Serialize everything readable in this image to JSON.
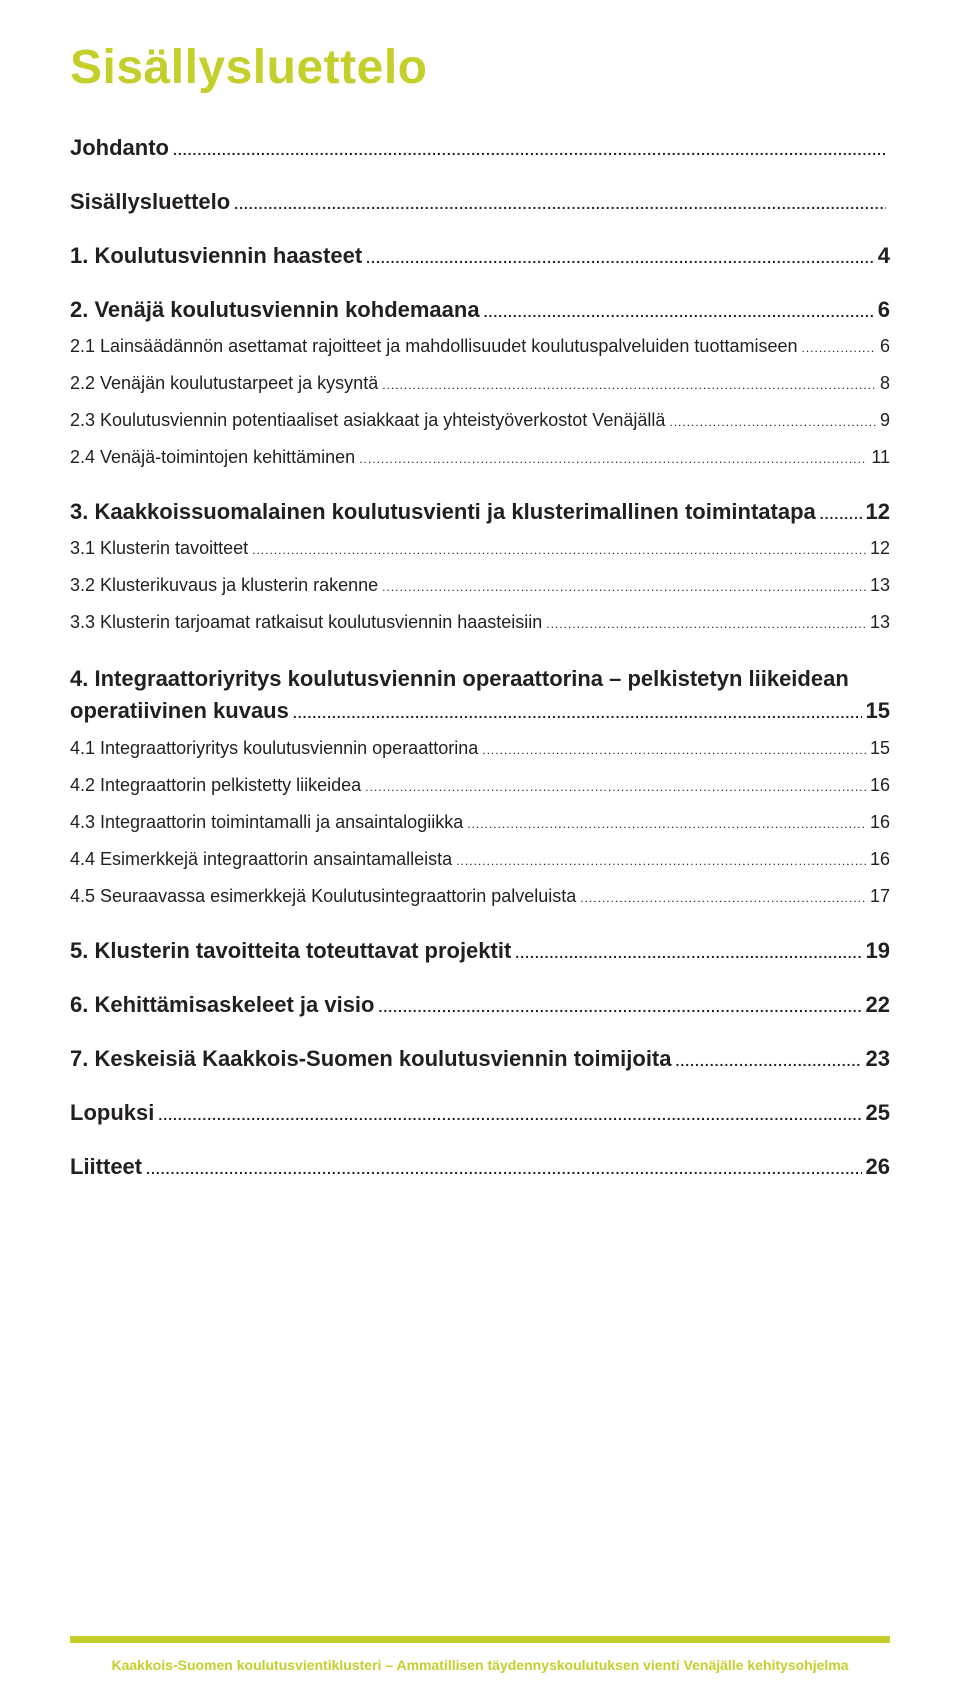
{
  "title": "Sisällysluettelo",
  "toc": [
    {
      "level": 0,
      "label": "Johdanto",
      "page": ""
    },
    {
      "level": 0,
      "label": "Sisällysluettelo",
      "page": ""
    },
    {
      "level": 0,
      "label": "1. Koulutusviennin haasteet",
      "page": "4"
    },
    {
      "level": 0,
      "label": "2. Venäjä koulutusviennin kohdemaana",
      "page": "6"
    },
    {
      "level": 1,
      "label": "2.1 Lainsäädännön asettamat rajoitteet ja mahdollisuudet koulutuspalveluiden tuottamiseen",
      "page": "6"
    },
    {
      "level": 1,
      "label": "2.2 Venäjän koulutustarpeet ja kysyntä",
      "page": "8"
    },
    {
      "level": 1,
      "label": "2.3 Koulutusviennin potentiaaliset asiakkaat ja yhteistyöverkostot Venäjällä",
      "page": "9"
    },
    {
      "level": 1,
      "label": "2.4 Venäjä-toimintojen kehittäminen",
      "page": "11"
    },
    {
      "level": 0,
      "label": "3. Kaakkoissuomalainen koulutusvienti ja klusterimallinen toimintatapa",
      "page": "12"
    },
    {
      "level": 1,
      "label": "3.1 Klusterin tavoitteet",
      "page": "12"
    },
    {
      "level": 1,
      "label": "3.2 Klusterikuvaus ja klusterin rakenne",
      "page": "13"
    },
    {
      "level": 1,
      "label": "3.3 Klusterin tarjoamat ratkaisut koulutusviennin haasteisiin",
      "page": "13"
    },
    {
      "level": 0,
      "label_line1": "4. Integraattoriyritys koulutusviennin operaattorina – pelkistetyn liikeidean",
      "label_line2": "operatiivinen kuvaus",
      "page": "15",
      "multi": true
    },
    {
      "level": 1,
      "label": "4.1 Integraattoriyritys koulutusviennin operaattorina",
      "page": "15"
    },
    {
      "level": 1,
      "label": "4.2 Integraattorin pelkistetty liikeidea",
      "page": "16"
    },
    {
      "level": 1,
      "label": "4.3 Integraattorin toimintamalli ja ansaintalogiikka",
      "page": "16"
    },
    {
      "level": 1,
      "label": "4.4 Esimerkkejä integraattorin ansaintamalleista",
      "page": "16"
    },
    {
      "level": 1,
      "label": "4.5 Seuraavassa esimerkkejä Koulutusintegraattorin palveluista",
      "page": "17"
    },
    {
      "level": 0,
      "label": "5. Klusterin tavoitteita toteuttavat projektit",
      "page": "19"
    },
    {
      "level": 0,
      "label": "6. Kehittämisaskeleet ja visio",
      "page": "22"
    },
    {
      "level": 0,
      "label": "7. Keskeisiä Kaakkois-Suomen koulutusviennin toimijoita",
      "page": "23"
    },
    {
      "level": 0,
      "label": "Lopuksi",
      "page": "25"
    },
    {
      "level": 0,
      "label": "Liitteet",
      "page": "26"
    }
  ],
  "footer": "Kaakkois-Suomen koulutusvientiklusteri – Ammatillisen täydennyskoulutuksen vienti Venäjälle kehitysohjelma",
  "colors": {
    "accent": "#c4cf2c",
    "text": "#231f20",
    "background": "#ffffff"
  },
  "typography": {
    "title_fontsize": 48,
    "lvl0_fontsize": 22,
    "lvl1_fontsize": 18,
    "footer_fontsize": 14
  }
}
